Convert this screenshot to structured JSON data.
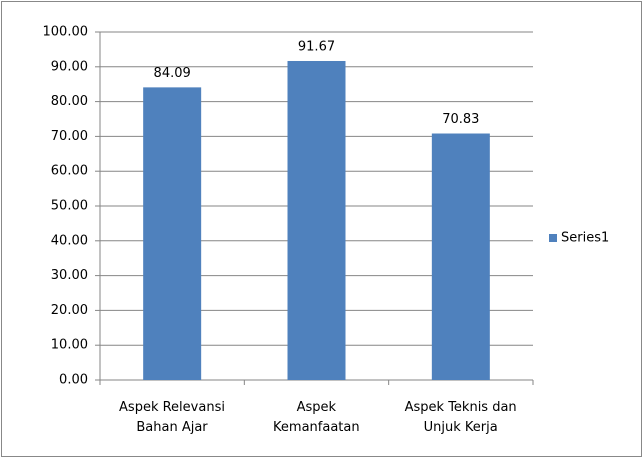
{
  "chart_data": {
    "type": "bar",
    "categories": [
      "Aspek Relevansi\nBahan Ajar",
      "Aspek\nKemanfaatan",
      "Aspek Teknis dan\nUnjuk Kerja"
    ],
    "series": [
      {
        "name": "Series1",
        "color": "#4f81bd",
        "values": [
          84.09,
          91.67,
          70.83
        ]
      }
    ],
    "ylim": [
      0,
      100
    ],
    "yticks": [
      {
        "value": 0,
        "label": "0.00"
      },
      {
        "value": 10,
        "label": "10.00"
      },
      {
        "value": 20,
        "label": "20.00"
      },
      {
        "value": 30,
        "label": "30.00"
      },
      {
        "value": 40,
        "label": "40.00"
      },
      {
        "value": 50,
        "label": "50.00"
      },
      {
        "value": 60,
        "label": "60.00"
      },
      {
        "value": 70,
        "label": "70.00"
      },
      {
        "value": 80,
        "label": "80.00"
      },
      {
        "value": 90,
        "label": "90.00"
      },
      {
        "value": 100,
        "label": "100.00"
      }
    ],
    "grid": true,
    "legend": "right"
  }
}
